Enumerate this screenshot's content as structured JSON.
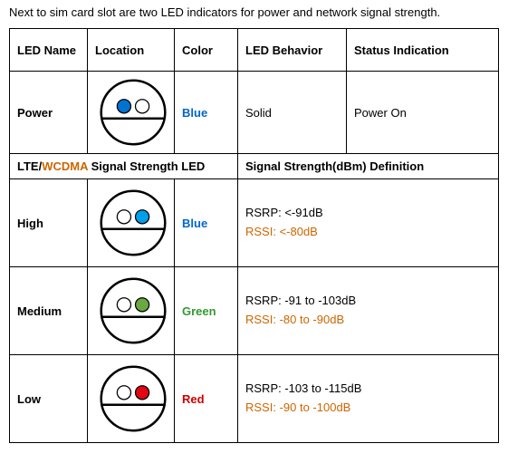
{
  "intro": "Next to sim card slot are two LED indicators for power and network signal strength.",
  "headers": {
    "led_name": "LED Name",
    "location": "Location",
    "color": "Color",
    "behavior": "LED Behavior",
    "status": "Status Indication"
  },
  "power_row": {
    "name": "Power",
    "color_label": "Blue",
    "color_class": "c-blue",
    "behavior": "Solid",
    "status": "Power On",
    "diagram": {
      "left_fill": "#0073d1",
      "right_fill": "#ffffff"
    }
  },
  "subheader": {
    "lte": "LTE",
    "sep": "/",
    "wcdma": "WCDMA",
    "suffix": " Signal Strength LED",
    "right": "Signal Strength(dBm) Definition"
  },
  "signal_rows": [
    {
      "name": "High",
      "color_label": "Blue",
      "color_class": "c-blue",
      "rsrp": "RSRP: <-91dB",
      "rssi": "RSSI: <-80dB",
      "diagram": {
        "left_fill": "#ffffff",
        "right_fill": "#00a0e8"
      }
    },
    {
      "name": "Medium",
      "color_label": "Green",
      "color_class": "c-green",
      "rsrp": "RSRP: -91 to -103dB",
      "rssi": "RSSI: -80 to -90dB",
      "diagram": {
        "left_fill": "#ffffff",
        "right_fill": "#6aa843"
      }
    },
    {
      "name": "Low",
      "color_label": "Red",
      "color_class": "c-red",
      "rsrp": "RSRP: -103 to -115dB",
      "rssi": "RSSI: -90 to -100dB",
      "diagram": {
        "left_fill": "#ffffff",
        "right_fill": "#e30613"
      }
    }
  ],
  "diagram_style": {
    "outer_stroke": "#000000",
    "outer_stroke_width": 3,
    "inner_stroke_width": 1.5,
    "chord_width": 3
  }
}
